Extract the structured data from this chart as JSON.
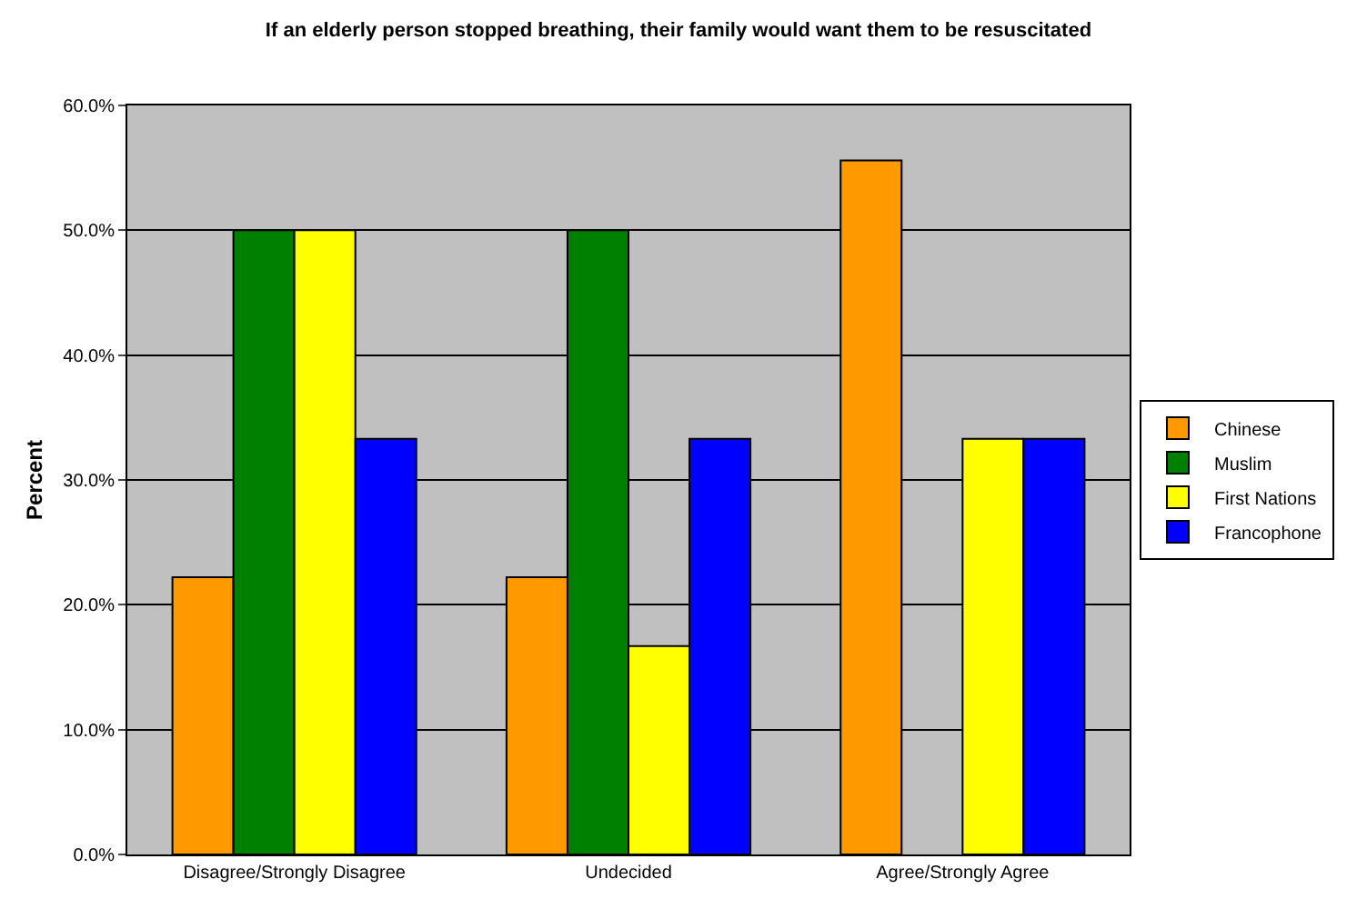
{
  "chart_data": {
    "type": "bar",
    "title": "If an elderly person stopped breathing, their family would want them to be resuscitated",
    "ylabel": "Percent",
    "categories": [
      "Disagree/Strongly Disagree",
      "Undecided",
      "Agree/Strongly Agree"
    ],
    "series": [
      {
        "name": "Chinese",
        "color": "#ff9900",
        "values": [
          22.2,
          22.2,
          55.6
        ]
      },
      {
        "name": "Muslim",
        "color": "#008000",
        "values": [
          50,
          50,
          null
        ]
      },
      {
        "name": "First Nations",
        "color": "#ffff00",
        "values": [
          50,
          16.7,
          33.3
        ]
      },
      {
        "name": "Francophone",
        "color": "#0000ff",
        "values": [
          33.3,
          33.3,
          33.3
        ]
      }
    ],
    "ylim": [
      0,
      60
    ],
    "yticks": [
      {
        "value": 0,
        "label": "0.0%"
      },
      {
        "value": 10,
        "label": "10.0%"
      },
      {
        "value": 20,
        "label": "20.0%"
      },
      {
        "value": 30,
        "label": "30.0%"
      },
      {
        "value": 40,
        "label": "40.0%"
      },
      {
        "value": 50,
        "label": "50.0%"
      },
      {
        "value": 60,
        "label": "60.0%"
      }
    ],
    "grid": "y",
    "legend": "right"
  }
}
